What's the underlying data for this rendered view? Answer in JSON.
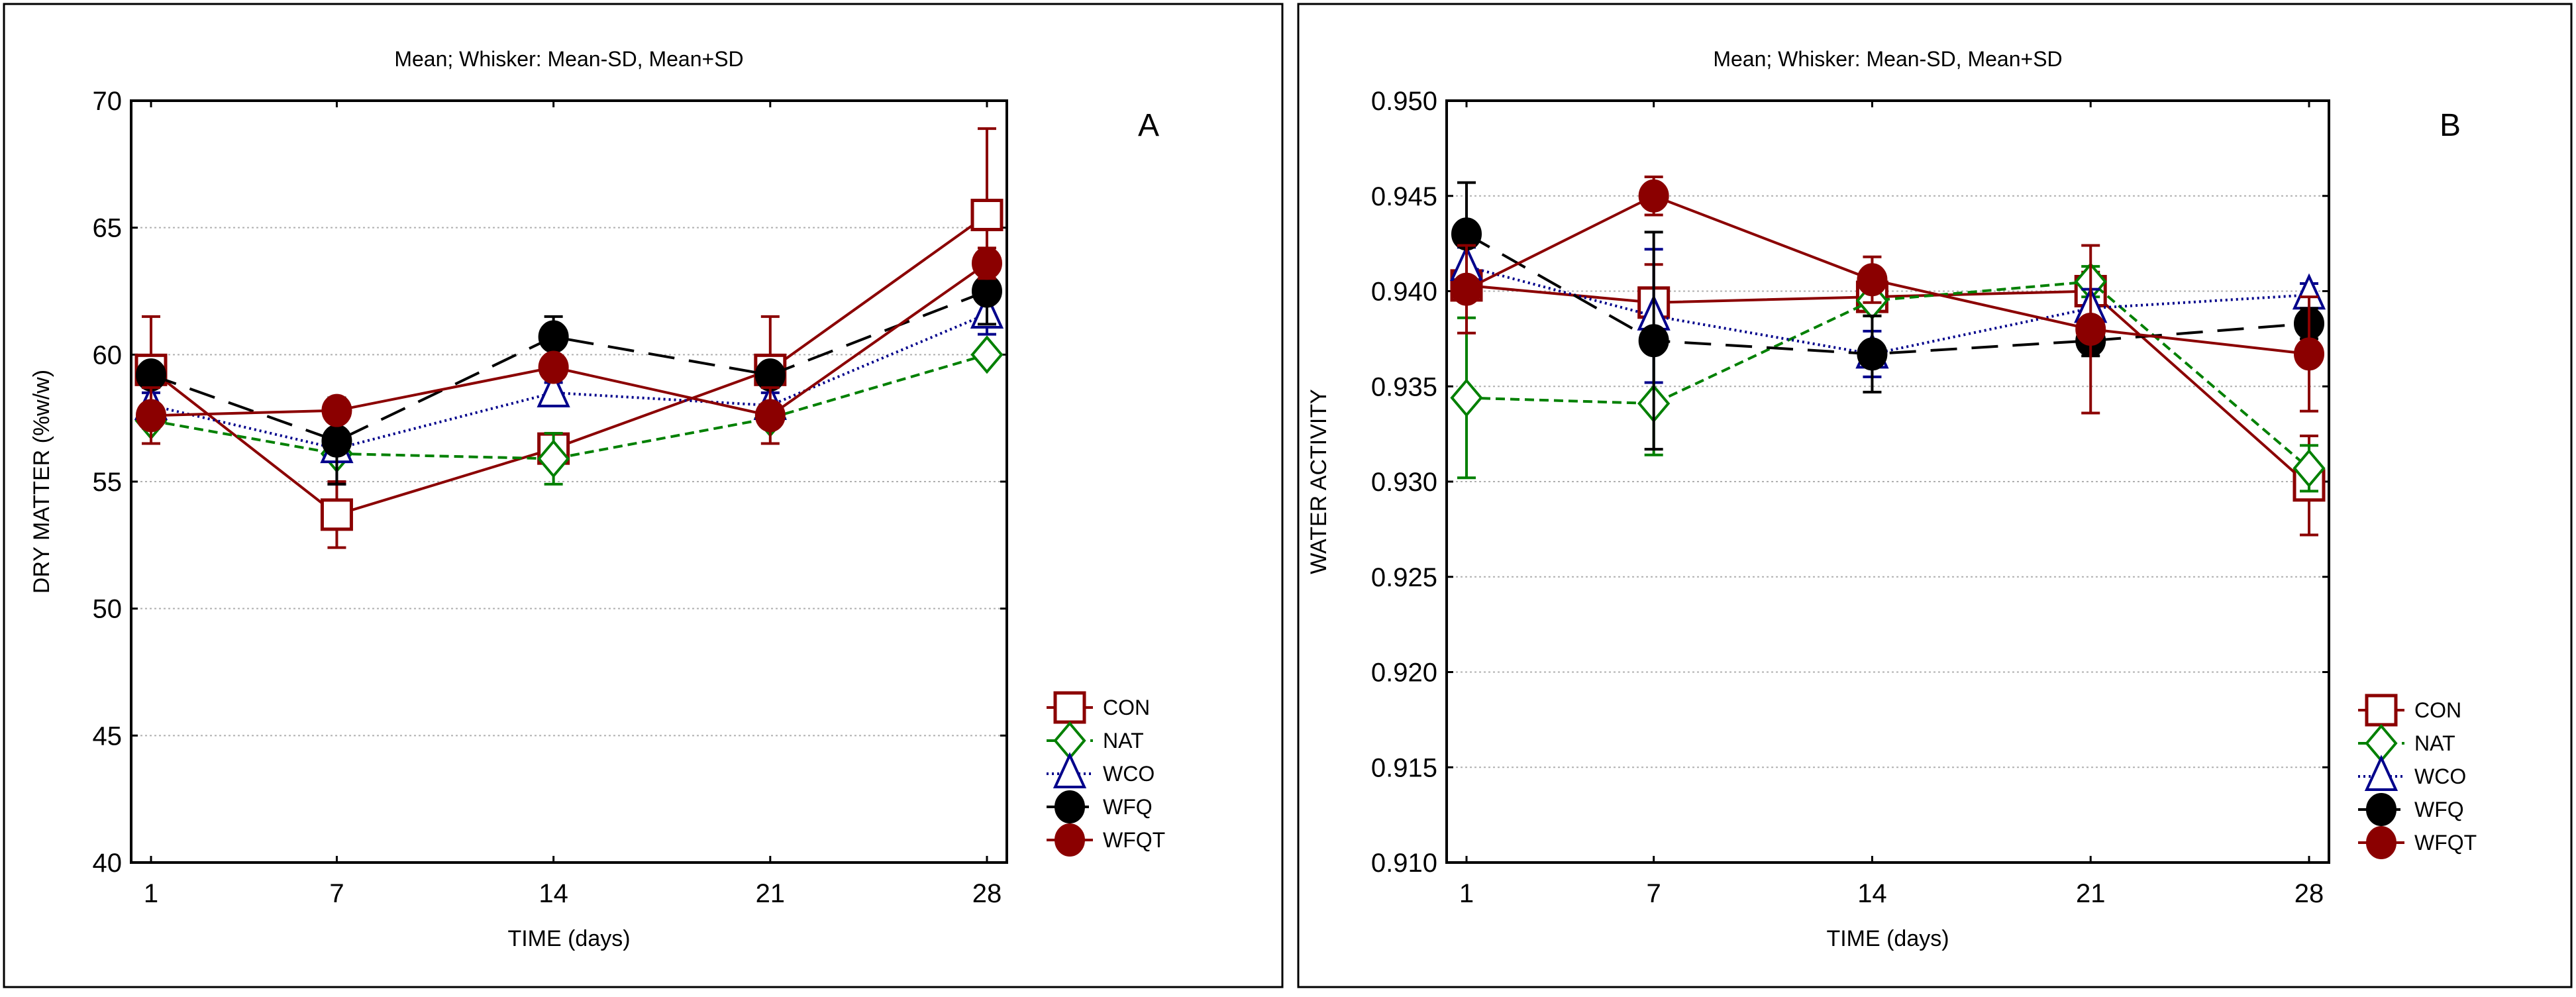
{
  "chart_data": [
    {
      "type": "line",
      "panel_label": "A",
      "title": "Mean;  Whisker: Mean-SD, Mean+SD",
      "xlabel": "TIME (days)",
      "ylabel": "DRY MATTER (%w/w)",
      "x": [
        1,
        7,
        14,
        21,
        28
      ],
      "x_ticks": [
        "1",
        "7",
        "14",
        "21",
        "28"
      ],
      "ylim": [
        40,
        70
      ],
      "y_ticks": [
        "40",
        "45",
        "50",
        "55",
        "60",
        "65",
        "70"
      ],
      "grid": true,
      "legend_position": "right",
      "series": [
        {
          "name": "CON",
          "values": [
            59.4,
            53.7,
            56.3,
            59.4,
            65.5
          ],
          "sd": [
            2.1,
            1.3,
            0.6,
            2.1,
            3.4
          ]
        },
        {
          "name": "NAT",
          "values": [
            57.4,
            56.1,
            55.9,
            57.5,
            60.0
          ],
          "sd": [
            0.3,
            0.3,
            1.0,
            0.3,
            0.2
          ]
        },
        {
          "name": "WCO",
          "values": [
            58.0,
            56.3,
            58.5,
            58.0,
            61.6
          ],
          "sd": [
            0.5,
            1.4,
            0.4,
            0.5,
            0.8
          ]
        },
        {
          "name": "WFQ",
          "values": [
            59.2,
            56.6,
            60.7,
            59.2,
            62.5
          ],
          "sd": [
            0.4,
            1.7,
            0.8,
            0.4,
            1.3
          ]
        },
        {
          "name": "WFQT",
          "values": [
            57.6,
            57.8,
            59.5,
            57.6,
            63.6
          ],
          "sd": [
            1.1,
            0.4,
            0.4,
            1.1,
            0.6
          ]
        }
      ]
    },
    {
      "type": "line",
      "panel_label": "B",
      "title": "Mean;  Whisker: Mean-SD, Mean+SD",
      "xlabel": "TIME (days)",
      "ylabel": "WATER ACTIVITY",
      "x": [
        1,
        7,
        14,
        21,
        28
      ],
      "x_ticks": [
        "1",
        "7",
        "14",
        "21",
        "28"
      ],
      "ylim": [
        0.91,
        0.95
      ],
      "y_ticks": [
        "0.910",
        "0.915",
        "0.920",
        "0.925",
        "0.930",
        "0.935",
        "0.940",
        "0.945",
        "0.950"
      ],
      "grid": true,
      "legend_position": "right",
      "series": [
        {
          "name": "CON",
          "values": [
            0.9403,
            0.9394,
            0.9397,
            0.94,
            0.9298
          ],
          "sd": [
            0.0008,
            0.002,
            0.001,
            0.001,
            0.0026
          ]
        },
        {
          "name": "NAT",
          "values": [
            0.9344,
            0.9341,
            0.9395,
            0.9405,
            0.9307
          ],
          "sd": [
            0.0042,
            0.0027,
            0.0008,
            0.0008,
            0.0012
          ]
        },
        {
          "name": "WCO",
          "values": [
            0.9413,
            0.9387,
            0.9367,
            0.9391,
            0.9398
          ],
          "sd": [
            0.001,
            0.0035,
            0.0012,
            0.001,
            0.0006
          ]
        },
        {
          "name": "WFQ",
          "values": [
            0.943,
            0.9374,
            0.9367,
            0.9374,
            0.9383
          ],
          "sd": [
            0.0027,
            0.0057,
            0.002,
            0.0008,
            0.0008
          ]
        },
        {
          "name": "WFQT",
          "values": [
            0.9401,
            0.945,
            0.9406,
            0.938,
            0.9367
          ],
          "sd": [
            0.0023,
            0.001,
            0.0012,
            0.0044,
            0.003
          ]
        }
      ]
    }
  ],
  "styles": {
    "CON": {
      "color": "#8b0000",
      "marker": "square-open",
      "dash": ""
    },
    "NAT": {
      "color": "#008000",
      "marker": "diamond-open",
      "dash": "14 8"
    },
    "WCO": {
      "color": "#00008b",
      "marker": "triangle-open",
      "dash": "3 5"
    },
    "WFQ": {
      "color": "#000000",
      "marker": "circle-filled",
      "dash": "40 22"
    },
    "WFQT": {
      "color": "#8b0000",
      "marker": "circle-filled",
      "dash": ""
    }
  }
}
